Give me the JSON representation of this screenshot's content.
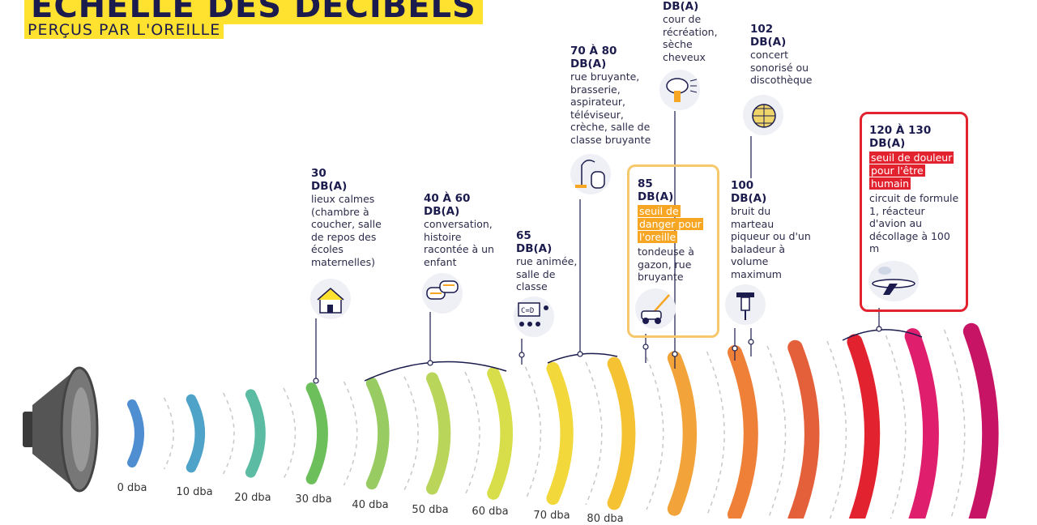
{
  "header": {
    "title": "ÉCHELLE DES DÉCIBELS",
    "subtitle": "PERÇUS PAR L'OREILLE"
  },
  "scale_labels": [
    "0 dba",
    "10 dba",
    "20 dba",
    "30 dba",
    "40 dba",
    "50 dba",
    "60 dba",
    "70 dba",
    "80 dba"
  ],
  "wave_colors": [
    "#4f8fd1",
    "#4fa3c9",
    "#5bbba3",
    "#6cbf5a",
    "#98cc63",
    "#b9d65a",
    "#d7de4a",
    "#f2d83b",
    "#f5c233",
    "#f2a33a",
    "#ee8038",
    "#e3603a",
    "#e2222e",
    "#e01e6e",
    "#c71465"
  ],
  "cards": {
    "c30": {
      "db": "30",
      "unit": "DB(A)",
      "desc": "lieux calmes (chambre à coucher, salle de repos des écoles maternelles)",
      "icon": "house-icon"
    },
    "c40": {
      "db": "40 À 60",
      "unit": "DB(A)",
      "desc": "conversation, histoire racontée à un enfant",
      "icon": "speech-bubbles-icon"
    },
    "c65": {
      "db": "65",
      "unit": "DB(A)",
      "desc": "rue animée, salle de classe",
      "icon": "classroom-icon"
    },
    "c70": {
      "db": "70 À 80",
      "unit": "DB(A)",
      "desc": "rue bruyante, brasserie, aspirateur, téléviseur, crèche, salle de classe bruyante",
      "icon": "vacuum-icon"
    },
    "c85": {
      "db": "85",
      "unit": "DB(A)",
      "warning": "seuil de danger pour l'oreille",
      "desc": "tondeuse à gazon, rue bruyante",
      "icon": "lawnmower-icon"
    },
    "c90": {
      "unit": "DB(A)",
      "desc": "cour de récréation, sèche cheveux",
      "icon": "hairdryer-icon"
    },
    "c100": {
      "db": "100",
      "unit": "DB(A)",
      "desc": "bruit du marteau piqueur ou d'un baladeur à volume maximum",
      "icon": "jackhammer-icon"
    },
    "c102": {
      "db": "102",
      "unit": "DB(A)",
      "desc": "concert sonorisé ou discothèque",
      "icon": "disco-ball-icon"
    },
    "c120": {
      "db": "120 À 130",
      "unit": "DB(A)",
      "warning": "seuil de douleur pour l'être humain",
      "desc": "circuit de formule 1, réacteur d'avion au décollage à 100 m",
      "icon": "airplane-icon"
    }
  }
}
